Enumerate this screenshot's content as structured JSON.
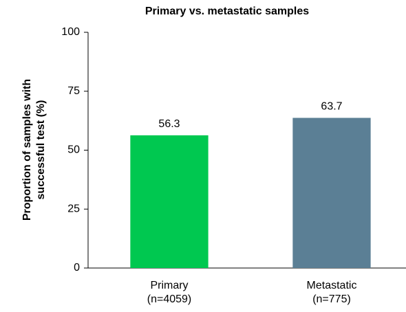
{
  "chart_data": {
    "type": "bar",
    "title": "Primary vs. metastatic samples",
    "ylabel": [
      "Proportion of samples with",
      "successful test  (%)"
    ],
    "categories": [
      [
        "Primary",
        "(n=4059)"
      ],
      [
        "Metastatic",
        "(n=775)"
      ]
    ],
    "values": [
      56.3,
      63.7
    ],
    "colors": [
      "#00c850",
      "#5b7f95"
    ],
    "ylim": [
      0,
      100
    ],
    "yticks": [
      0,
      25,
      50,
      75,
      100
    ],
    "grid": false
  }
}
